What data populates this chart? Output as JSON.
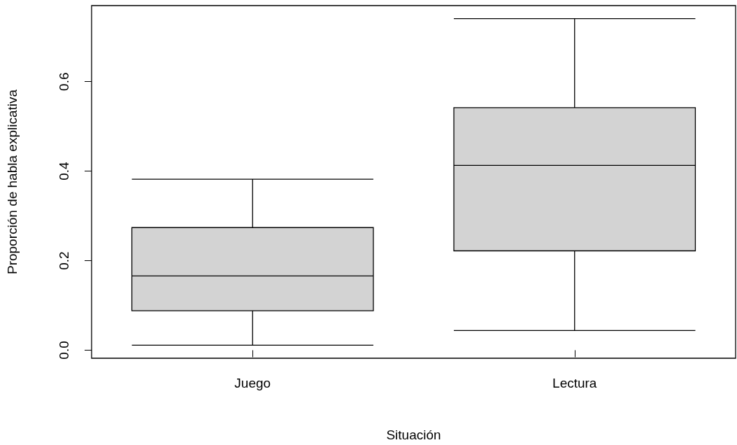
{
  "chart_data": {
    "type": "box",
    "xlabel": "Situación",
    "ylabel": "Proporción de habla explicativa",
    "categories": [
      "Juego",
      "Lectura"
    ],
    "boxes": [
      {
        "low": 0.011,
        "q1": 0.088,
        "median": 0.166,
        "q3": 0.274,
        "high": 0.382
      },
      {
        "low": 0.044,
        "q1": 0.222,
        "median": 0.413,
        "q3": 0.542,
        "high": 0.741
      }
    ],
    "color": "#d3d3d3",
    "ylim": [
      -0.018,
      0.77
    ],
    "yticks": [
      {
        "value": 0,
        "label": "0.0"
      },
      {
        "value": 0.2,
        "label": "0.2"
      },
      {
        "value": 0.4,
        "label": "0.4"
      },
      {
        "value": 0.6,
        "label": "0.6"
      }
    ],
    "grid": false
  }
}
